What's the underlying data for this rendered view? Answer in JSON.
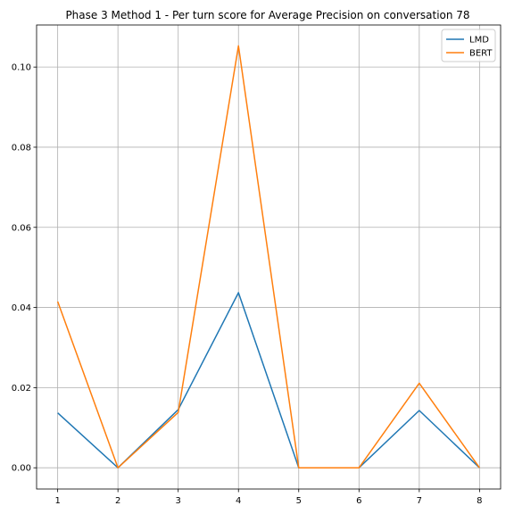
{
  "chart_data": {
    "type": "line",
    "title": "Phase 3 Method 1 - Per turn score for Average Precision on conversation 78",
    "xlabel": "",
    "ylabel": "",
    "x": [
      1,
      2,
      3,
      4,
      5,
      6,
      7,
      8
    ],
    "xlim": [
      0.65,
      8.35
    ],
    "ylim": [
      -0.0053,
      0.1105
    ],
    "x_ticks": [
      "1",
      "2",
      "3",
      "4",
      "5",
      "6",
      "7",
      "8"
    ],
    "y_ticks": [
      0.0,
      0.02,
      0.04,
      0.06,
      0.08,
      0.1
    ],
    "y_tick_labels": [
      "0.00",
      "0.02",
      "0.04",
      "0.06",
      "0.08",
      "0.10"
    ],
    "grid": true,
    "legend_position": "top-right",
    "series": [
      {
        "name": "LMD",
        "color": "#1f77b4",
        "values": [
          0.0137,
          0.0,
          0.0145,
          0.0437,
          0.0,
          0.0,
          0.0143,
          0.0
        ]
      },
      {
        "name": "BERT",
        "color": "#ff7f0e",
        "values": [
          0.0415,
          0.0,
          0.0138,
          0.1053,
          0.0,
          0.0,
          0.0211,
          0.0
        ]
      }
    ]
  }
}
